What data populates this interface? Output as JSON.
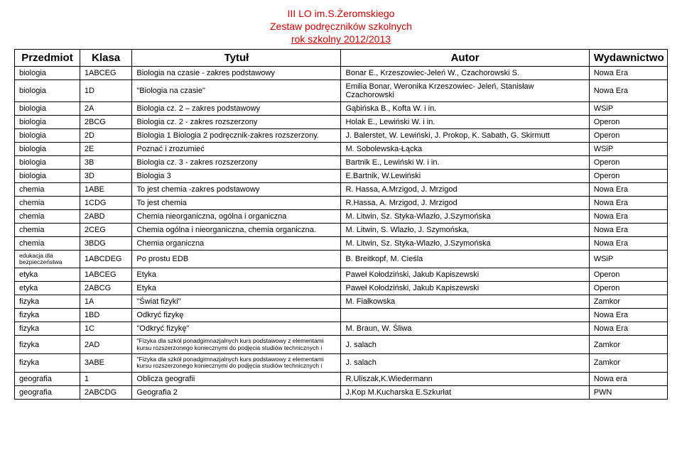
{
  "header": {
    "line1": "III LO im.S.Żeromskiego",
    "line2": "Zestaw podręczników szkolnych",
    "line3": "rok szkolny  2012/2013"
  },
  "columns": {
    "subject": "Przedmiot",
    "klasa": "Klasa",
    "title": "Tytuł",
    "author": "Autor",
    "publisher": "Wydawnictwo"
  },
  "rows": [
    {
      "subject": "biologia",
      "klasa": "1ABCEG",
      "title": "Biologia na czasie - zakres podstawowy",
      "author": "Bonar E., Krzeszowiec-Jeleń W., Czachorowski S.",
      "publisher": "Nowa Era"
    },
    {
      "subject": "biologia",
      "klasa": "1D",
      "title": "\"Biologia na czasie\"",
      "author": "Emilia Bonar, Weronika Krzeszowiec- Jeleń, Stanisław Czachorowski",
      "publisher": "Nowa Era"
    },
    {
      "subject": "biologia",
      "klasa": "2A",
      "title": "Biologia cz. 2 – zakres podstawowy",
      "author": "Gąbińska B., Kofta W. i in.",
      "publisher": "WSiP"
    },
    {
      "subject": "biologia",
      "klasa": "2BCG",
      "title": "Biologia cz. 2 - zakres rozszerzony",
      "author": "Holak E., Lewiński W. i in.",
      "publisher": "Operon"
    },
    {
      "subject": "biologia",
      "klasa": "2D",
      "title": "Biologia 1 Biologia 2 podręcznik-zakres rozszerzony.",
      "author": "J. Balerstet, W. Lewiński, J. Prokop, K. Sabath, G. Skirmutt",
      "publisher": "Operon"
    },
    {
      "subject": "biologia",
      "klasa": "2E",
      "title": "Poznać i zrozumieć",
      "author": "M. Sobolewska-Łącka",
      "publisher": "WSiP"
    },
    {
      "subject": "biologia",
      "klasa": "3B",
      "title": "Biologia cz. 3 - zakres rozszerzony",
      "author": "Bartnik E., Lewiński W. i in.",
      "publisher": "Operon"
    },
    {
      "subject": "biologia",
      "klasa": "3D",
      "title": "Biologia 3",
      "author": "E.Bartnik, W.Lewiński",
      "publisher": "Operon"
    },
    {
      "subject": "chemia",
      "klasa": "1ABE",
      "title": "To jest chemia -zakres podstawowy",
      "author": "R. Hassa, A.Mrzigod, J. Mrzigod",
      "publisher": "Nowa Era"
    },
    {
      "subject": "chemia",
      "klasa": "1CDG",
      "title": "To jest chemia",
      "author": "R.Hassa, A. Mrzigod, J. Mrzigod",
      "publisher": "Nowa Era"
    },
    {
      "subject": "chemia",
      "klasa": "2ABD",
      "title": "Chemia nieorganiczna, ogólna i organiczna",
      "author": "M. Litwin, Sz. Styka-Wlazło, J.Szymońska",
      "publisher": "Nowa Era"
    },
    {
      "subject": "chemia",
      "klasa": "2CEG",
      "title": "Chemia ogólna i nieorganiczna, chemia organiczna.",
      "author": "M. Litwin, S. Wlazło, J. Szymońska,",
      "publisher": "Nowa Era"
    },
    {
      "subject": "chemia",
      "klasa": "3BDG",
      "title": "Chemia organiczna",
      "author": "M. Litwin, Sz. Styka-Wlazło, J.Szymońska",
      "publisher": "Nowa Era"
    },
    {
      "subject": "edukacja dla bezpieczeństwa",
      "klasa": "1ABCDEG",
      "title": "Po prostu EDB",
      "author": "B. Breitkopf, M. Cieśla",
      "publisher": "WSiP"
    },
    {
      "subject": "etyka",
      "klasa": "1ABCEG",
      "title": "Etyka",
      "author": "Paweł Kołodziński, Jakub Kapiszewski",
      "publisher": "Operon"
    },
    {
      "subject": "etyka",
      "klasa": "2ABCG",
      "title": "Etyka",
      "author": "Paweł Kołodziński, Jakub Kapiszewski",
      "publisher": "Operon"
    },
    {
      "subject": "fizyka",
      "klasa": "1A",
      "title": "\"Świat fizyki\"",
      "author": "M. Fiałkowska",
      "publisher": "Zamkor"
    },
    {
      "subject": "fizyka",
      "klasa": "1BD",
      "title": "Odkryć fizykę",
      "author": "",
      "publisher": "Nowa Era"
    },
    {
      "subject": "fizyka",
      "klasa": "1C",
      "title": "\"Odkryć fizykę\"",
      "author": "M. Braun, W. Śliwa",
      "publisher": "Nowa Era"
    },
    {
      "subject": "fizyka",
      "klasa": "2AD",
      "title": "\"Fizyka dla szkół ponadgimnazjalnych kurs podstawowy z elementami kursu rozszerzonego koniecznymi do podjęcia studiów technicznych i",
      "author": "J. salach",
      "publisher": "Zamkor",
      "smallTitle": true
    },
    {
      "subject": "fizyka",
      "klasa": "3ABE",
      "title": "\"Fizyka dla szkół ponadgimnazjalnych kurs podstawowy z elementami kursu rozszerzonego koniecznymi do podjęcia studiów technicznych i",
      "author": "J. salach",
      "publisher": "Zamkor",
      "smallTitle": true
    },
    {
      "subject": "geografia",
      "klasa": "1",
      "title": "Oblicza geografii",
      "author": "R.Uliszak,K.Wiedermann",
      "publisher": "Nowa era"
    },
    {
      "subject": "geografia",
      "klasa": "2ABCDG",
      "title": "Geografia 2",
      "author": "J.Kop M.Kucharska E.Szkurłat",
      "publisher": "PWN"
    }
  ]
}
